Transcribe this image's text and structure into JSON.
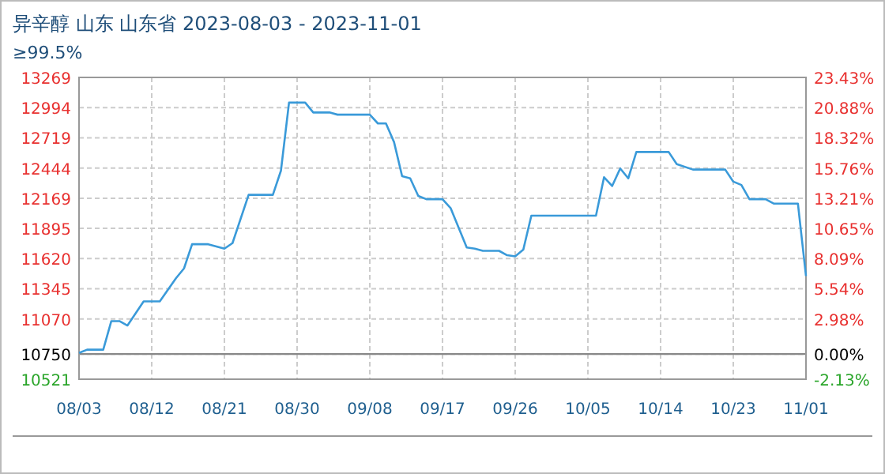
{
  "chart_data": {
    "type": "line",
    "title": "异辛醇 山东 山东省 2023-08-03 - 2023-11-01",
    "subtitle": "≥99.5%",
    "x": [
      "2023-08-03",
      "2023-08-04",
      "2023-08-06",
      "2023-08-07",
      "2023-08-08",
      "2023-08-09",
      "2023-08-11",
      "2023-08-13",
      "2023-08-15",
      "2023-08-16",
      "2023-08-17",
      "2023-08-19",
      "2023-08-21",
      "2023-08-22",
      "2023-08-24",
      "2023-08-27",
      "2023-08-28",
      "2023-08-29",
      "2023-08-31",
      "2023-09-01",
      "2023-09-03",
      "2023-09-04",
      "2023-09-08",
      "2023-09-09",
      "2023-09-10",
      "2023-09-11",
      "2023-09-12",
      "2023-09-13",
      "2023-09-14",
      "2023-09-15",
      "2023-09-17",
      "2023-09-18",
      "2023-09-20",
      "2023-09-21",
      "2023-09-22",
      "2023-09-24",
      "2023-09-25",
      "2023-09-26",
      "2023-09-27",
      "2023-09-28",
      "2023-10-06",
      "2023-10-07",
      "2023-10-08",
      "2023-10-09",
      "2023-10-10",
      "2023-10-11",
      "2023-10-15",
      "2023-10-16",
      "2023-10-18",
      "2023-10-22",
      "2023-10-23",
      "2023-10-24",
      "2023-10-25",
      "2023-10-27",
      "2023-10-28",
      "2023-10-31",
      "2023-11-01"
    ],
    "series": [
      {
        "color": "#3a9ad9",
        "values": [
          10760,
          10790,
          10790,
          11050,
          11050,
          11010,
          11230,
          11230,
          11440,
          11530,
          11750,
          11750,
          11710,
          11760,
          12200,
          12200,
          12420,
          13040,
          13040,
          12950,
          12950,
          12930,
          12930,
          12850,
          12850,
          12680,
          12370,
          12350,
          12190,
          12160,
          12160,
          12080,
          11720,
          11710,
          11690,
          11690,
          11650,
          11640,
          11700,
          12010,
          12010,
          12360,
          12280,
          12440,
          12350,
          12590,
          12590,
          12480,
          12430,
          12430,
          12320,
          12290,
          12160,
          12160,
          12120,
          12120,
          11460
        ]
      }
    ],
    "xlim": [
      "2023-08-03",
      "2023-11-01"
    ],
    "xticks": [
      {
        "value": "2023-08-03",
        "label": "08/03"
      },
      {
        "value": "2023-08-12",
        "label": "08/12"
      },
      {
        "value": "2023-08-21",
        "label": "08/21"
      },
      {
        "value": "2023-08-30",
        "label": "08/30"
      },
      {
        "value": "2023-09-08",
        "label": "09/08"
      },
      {
        "value": "2023-09-17",
        "label": "09/17"
      },
      {
        "value": "2023-09-26",
        "label": "09/26"
      },
      {
        "value": "2023-10-05",
        "label": "10/05"
      },
      {
        "value": "2023-10-14",
        "label": "10/14"
      },
      {
        "value": "2023-10-23",
        "label": "10/23"
      },
      {
        "value": "2023-11-01",
        "label": "11/01"
      }
    ],
    "ylim": [
      10521,
      13269
    ],
    "yticks": [
      10521,
      10750,
      11070,
      11345,
      11620,
      11895,
      12169,
      12444,
      12719,
      12994,
      13269
    ],
    "y2lim": [
      -2.13,
      23.43
    ],
    "y2ticks": [
      {
        "value": -2.13,
        "label": "-2.13%"
      },
      {
        "value": 0,
        "label": "0.00%"
      },
      {
        "value": 2.98,
        "label": "2.98%"
      },
      {
        "value": 5.54,
        "label": "5.54%"
      },
      {
        "value": 8.09,
        "label": "8.09%"
      },
      {
        "value": 10.65,
        "label": "10.65%"
      },
      {
        "value": 13.21,
        "label": "13.21%"
      },
      {
        "value": 15.76,
        "label": "15.76%"
      },
      {
        "value": 18.32,
        "label": "18.32%"
      },
      {
        "value": 20.88,
        "label": "20.88%"
      },
      {
        "value": 23.43,
        "label": "23.43%"
      }
    ],
    "ref_lines": [
      {
        "axis": "y",
        "value": 10750,
        "color": "#888888"
      }
    ],
    "grid": true
  }
}
